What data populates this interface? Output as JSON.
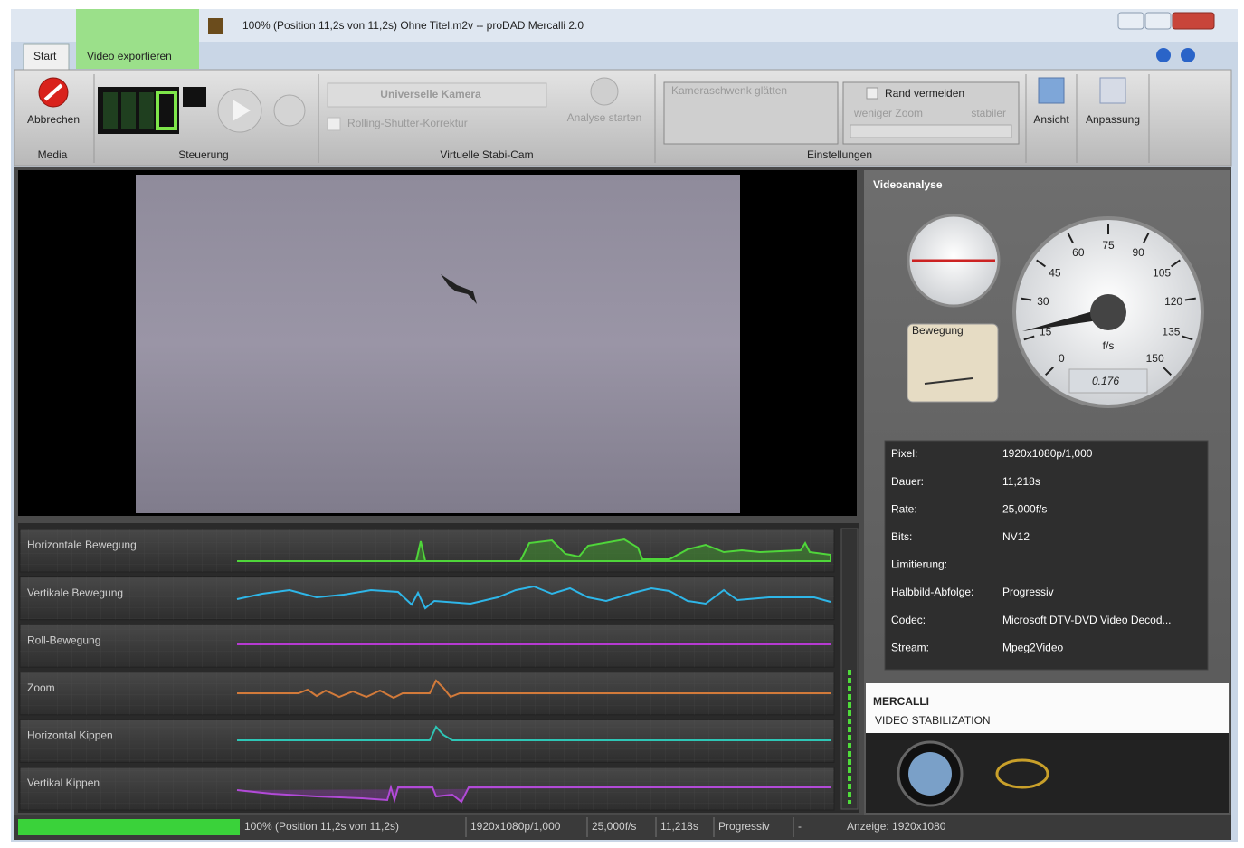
{
  "window": {
    "title": "100%  (Position 11,2s von 11,2s) Ohne Titel.m2v -- proDAD Mercalli 2.0"
  },
  "tabs": [
    "Start",
    "Video exportieren"
  ],
  "ribbon": {
    "media": {
      "button": "Abbrechen",
      "label": "Media"
    },
    "steuerung": {
      "label": "Steuerung"
    },
    "stabicam": {
      "dropdown": "Universelle Kamera",
      "checkbox": "Rolling-Shutter-Korrektur",
      "button": "Analyse starten",
      "label": "Virtuelle Stabi-Cam"
    },
    "einstellungen": {
      "smooth": "Kameraschwenk glätten",
      "border": "Rand vermeiden",
      "less_zoom": "weniger Zoom",
      "stable": "stabiler",
      "label": "Einstellungen"
    },
    "view": "Ansicht",
    "adjust": "Anpassung"
  },
  "tracks": [
    "Horizontale Bewegung",
    "Vertikale Bewegung",
    "Roll-Bewegung",
    "Zoom",
    "Horizontal Kippen",
    "Vertikal Kippen"
  ],
  "analysis": {
    "title": "Videoanalyse",
    "gauge_label": "Bewegung",
    "scale": [
      0,
      15,
      30,
      45,
      60,
      75,
      90,
      105,
      120,
      135,
      150
    ],
    "unit": "f/s",
    "readout": "0.176",
    "info": [
      {
        "label": "Pixel:",
        "value": "1920x1080p/1,000"
      },
      {
        "label": "Dauer:",
        "value": "11,218s"
      },
      {
        "label": "Rate:",
        "value": "25,000f/s"
      },
      {
        "label": "Bits:",
        "value": "NV12"
      },
      {
        "label": "Limitierung:"
      },
      {
        "label": "Halbbild-Abfolge:",
        "value": "Progressiv"
      },
      {
        "label": "Codec:",
        "value": "Microsoft DTV-DVD Video Decod..."
      },
      {
        "label": "Stream:",
        "value": "Mpeg2Video"
      }
    ]
  },
  "logo": {
    "name": "MERCALLI",
    "tagline": "VIDEO STABILIZATION"
  },
  "status": {
    "progress": "100%  (Position 11,2s von 11,2s)",
    "items": [
      "1920x1080p/1,000",
      "25,000f/s",
      "11,218s",
      "Progressiv",
      "-"
    ],
    "display": "Anzeige:  1920x1080"
  }
}
